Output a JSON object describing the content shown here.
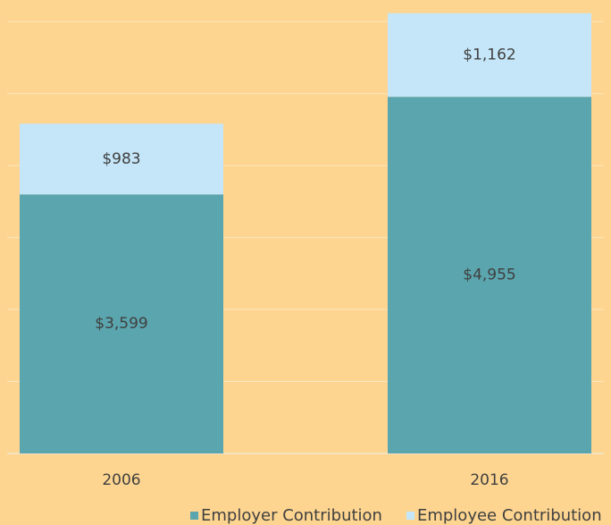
{
  "chart_data": {
    "type": "bar",
    "stacked": true,
    "categories": [
      "2006",
      "2016"
    ],
    "series": [
      {
        "name": "Employer Contribution",
        "color": "#5ba5ae",
        "values": [
          3599,
          4955
        ],
        "value_labels": [
          "$3,599",
          "$4,955"
        ]
      },
      {
        "name": "Employee Contribution",
        "color": "#c5e6f8",
        "values": [
          983,
          1162
        ],
        "value_labels": [
          "$983",
          "$1,162"
        ]
      }
    ],
    "ylim": [
      0,
      6300
    ],
    "yticks": [
      0,
      1000,
      2000,
      3000,
      4000,
      5000,
      6000
    ],
    "grid": true,
    "legend": "bottom"
  }
}
